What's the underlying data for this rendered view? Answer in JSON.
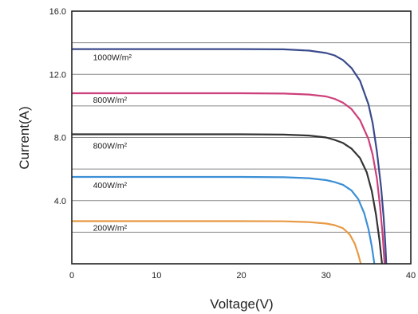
{
  "chart_data": {
    "type": "line",
    "xlabel": "Voltage(V)",
    "ylabel": "Current(A)",
    "xlim": [
      0,
      40
    ],
    "ylim": [
      0,
      16
    ],
    "x_ticks": [
      "0",
      "10",
      "20",
      "30",
      "40"
    ],
    "y_ticks": [
      "4.0",
      "8.0",
      "12.0",
      "16.0"
    ],
    "x_tick_values": [
      0,
      10,
      20,
      30,
      40
    ],
    "y_tick_values": [
      4,
      8,
      12,
      16
    ],
    "gridlines_y": [
      2,
      4,
      6,
      8,
      10,
      12,
      14
    ],
    "grid": "horizontal",
    "series": [
      {
        "label": "1000W/m²",
        "color": "#3a4a8c",
        "label_at": [
          2.5,
          12.9
        ],
        "x": [
          0,
          10,
          20,
          25,
          28,
          30,
          31,
          32,
          33,
          34,
          35,
          35.5,
          36,
          36.5,
          36.8,
          37.0,
          37.1
        ],
        "y": [
          13.6,
          13.6,
          13.6,
          13.58,
          13.5,
          13.35,
          13.2,
          12.9,
          12.4,
          11.6,
          10.1,
          8.9,
          7.1,
          4.8,
          2.9,
          1.2,
          0
        ]
      },
      {
        "label": "800W/m²",
        "color": "#cc3f7a",
        "label_at": [
          2.5,
          10.2
        ],
        "x": [
          0,
          10,
          20,
          25,
          28,
          30,
          31,
          32,
          33,
          34,
          35,
          35.5,
          36,
          36.4,
          36.7,
          36.9
        ],
        "y": [
          10.8,
          10.8,
          10.8,
          10.78,
          10.72,
          10.6,
          10.45,
          10.2,
          9.8,
          9.1,
          7.9,
          6.9,
          5.4,
          3.5,
          1.7,
          0
        ]
      },
      {
        "label": "800W/m²",
        "color": "#333333",
        "label_at": [
          2.5,
          7.3
        ],
        "x": [
          0,
          10,
          20,
          25,
          28,
          30,
          31,
          32,
          33,
          34,
          34.8,
          35.4,
          35.9,
          36.3,
          36.6
        ],
        "y": [
          8.2,
          8.2,
          8.2,
          8.18,
          8.12,
          8.0,
          7.85,
          7.65,
          7.3,
          6.7,
          5.8,
          4.6,
          3.1,
          1.5,
          0
        ]
      },
      {
        "label": "400W/m²",
        "color": "#3b8fd6",
        "label_at": [
          2.5,
          4.8
        ],
        "x": [
          0,
          10,
          20,
          25,
          28,
          30,
          31,
          32,
          33,
          33.8,
          34.5,
          35.0,
          35.4,
          35.7
        ],
        "y": [
          5.5,
          5.5,
          5.5,
          5.48,
          5.42,
          5.3,
          5.18,
          5.0,
          4.65,
          4.1,
          3.2,
          2.2,
          1.1,
          0
        ]
      },
      {
        "label": "200W/m²",
        "color": "#e89a45",
        "label_at": [
          2.5,
          2.1
        ],
        "x": [
          0,
          10,
          20,
          25,
          28,
          30,
          31,
          32,
          32.8,
          33.4,
          33.8,
          34.1
        ],
        "y": [
          2.7,
          2.7,
          2.7,
          2.69,
          2.64,
          2.55,
          2.45,
          2.25,
          1.85,
          1.25,
          0.6,
          0
        ]
      }
    ]
  }
}
